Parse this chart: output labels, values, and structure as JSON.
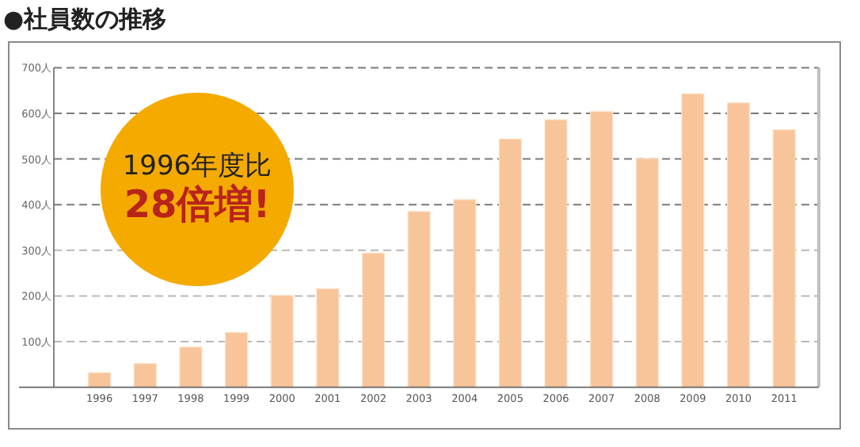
{
  "chart_data": {
    "type": "bar",
    "title": "●社員数の推移",
    "categories": [
      "1996",
      "1997",
      "1998",
      "1999",
      "2000",
      "2001",
      "2002",
      "2003",
      "2004",
      "2005",
      "2006",
      "2007",
      "2008",
      "2009",
      "2010",
      "2011"
    ],
    "values": [
      32,
      52,
      88,
      120,
      201,
      216,
      294,
      385,
      411,
      544,
      586,
      604,
      501,
      643,
      623,
      564
    ],
    "color": "#f8c499",
    "ylim": [
      0,
      700
    ],
    "yticks": [
      {
        "value": 100,
        "label": "100人"
      },
      {
        "value": 200,
        "label": "200人"
      },
      {
        "value": 300,
        "label": "300人"
      },
      {
        "value": 400,
        "label": "400人"
      },
      {
        "value": 500,
        "label": "500人"
      },
      {
        "value": 600,
        "label": "600人"
      },
      {
        "value": 700,
        "label": "700人"
      }
    ],
    "grid": "y",
    "annotations": [
      "1996年度比",
      "28倍増!"
    ]
  }
}
